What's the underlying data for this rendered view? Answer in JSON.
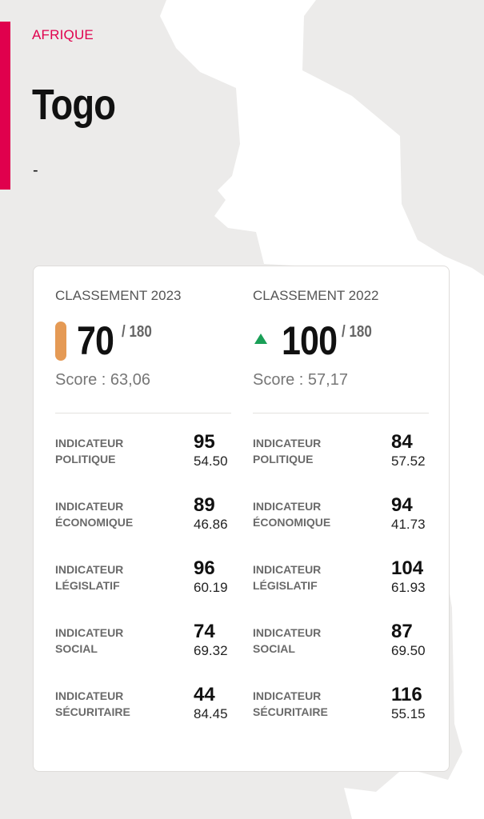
{
  "header": {
    "region": "AFRIQUE",
    "country": "Togo",
    "subtitle": "-"
  },
  "colors": {
    "accent": "#e0004d",
    "rank_pill_2023": "#e59a55",
    "up_arrow_2022": "#1a9f57"
  },
  "ranking_2023": {
    "title": "CLASSEMENT 2023",
    "rank": "70",
    "out_of": "/ 180",
    "score": "Score : 63,06",
    "indicators": [
      {
        "label1": "INDICATEUR",
        "label2": "POLITIQUE",
        "rank": "95",
        "score": "54.50"
      },
      {
        "label1": "INDICATEUR",
        "label2": "ÉCONOMIQUE",
        "rank": "89",
        "score": "46.86"
      },
      {
        "label1": "INDICATEUR",
        "label2": "LÉGISLATIF",
        "rank": "96",
        "score": "60.19"
      },
      {
        "label1": "INDICATEUR",
        "label2": "SOCIAL",
        "rank": "74",
        "score": "69.32"
      },
      {
        "label1": "INDICATEUR",
        "label2": "SÉCURITAIRE",
        "rank": "44",
        "score": "84.45"
      }
    ]
  },
  "ranking_2022": {
    "title": "CLASSEMENT 2022",
    "trend_icon": "up-arrow-icon",
    "rank": "100",
    "out_of": "/ 180",
    "score": "Score : 57,17",
    "indicators": [
      {
        "label1": "INDICATEUR",
        "label2": "POLITIQUE",
        "rank": "84",
        "score": "57.52"
      },
      {
        "label1": "INDICATEUR",
        "label2": "ÉCONOMIQUE",
        "rank": "94",
        "score": "41.73"
      },
      {
        "label1": "INDICATEUR",
        "label2": "LÉGISLATIF",
        "rank": "104",
        "score": "61.93"
      },
      {
        "label1": "INDICATEUR",
        "label2": "SOCIAL",
        "rank": "87",
        "score": "69.50"
      },
      {
        "label1": "INDICATEUR",
        "label2": "SÉCURITAIRE",
        "rank": "116",
        "score": "55.15"
      }
    ]
  }
}
